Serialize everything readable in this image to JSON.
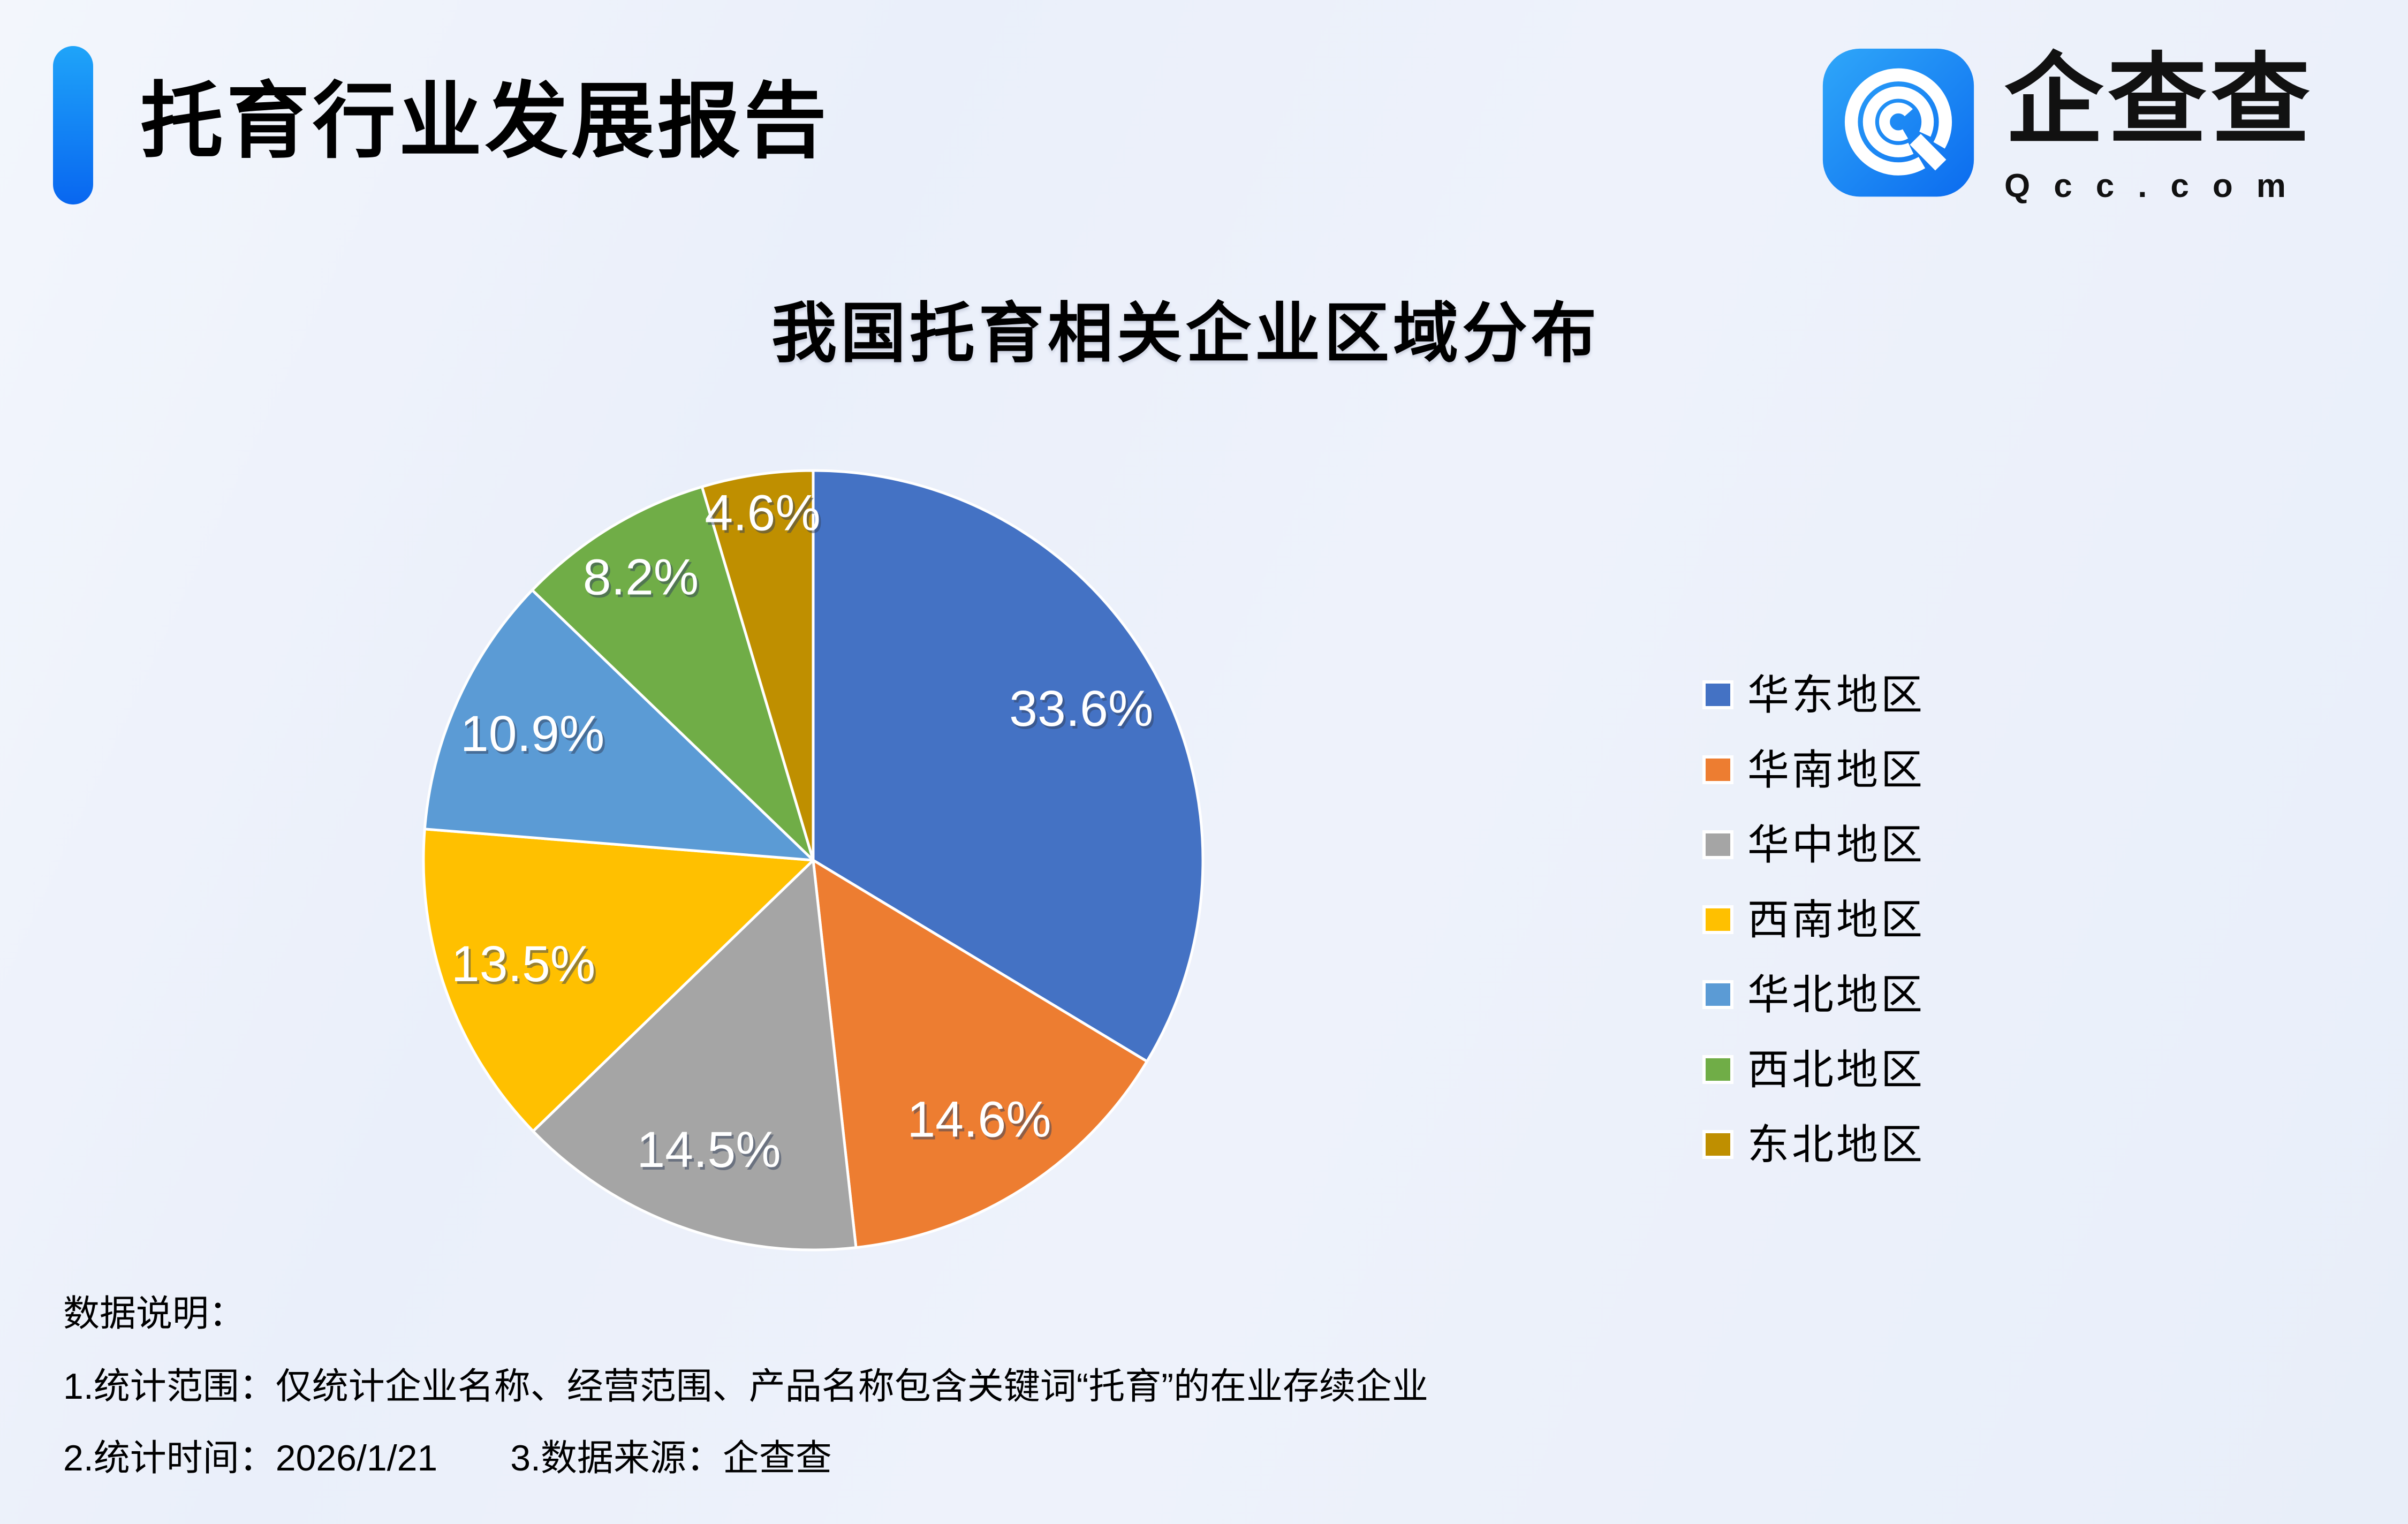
{
  "page": {
    "title": "托育行业发展报告",
    "brand": {
      "name": "企查查",
      "domain": "Qcc.com"
    },
    "notes": {
      "heading": "数据说明：",
      "line1": "1.统计范围：仅统计企业名称、经营范围、产品名称包含关键词“托育”的在业存续企业",
      "line2": "2.统计时间：2026/1/21　　3.数据来源：企查查"
    },
    "accent_color": "#0d7bf4",
    "logo_color": "#1a8cf5"
  },
  "chart_data": {
    "type": "pie",
    "title": "我国托育相关企业区域分布",
    "legend_position": "right",
    "label_format": "percent",
    "slices": [
      {
        "label": "华东地区",
        "value": 33.6,
        "display": "33.6%",
        "color": "#4472C4"
      },
      {
        "label": "华南地区",
        "value": 14.6,
        "display": "14.6%",
        "color": "#ED7D31"
      },
      {
        "label": "华中地区",
        "value": 14.5,
        "display": "14.5%",
        "color": "#A5A5A5"
      },
      {
        "label": "西南地区",
        "value": 13.5,
        "display": "13.5%",
        "color": "#FFC000"
      },
      {
        "label": "华北地区",
        "value": 10.9,
        "display": "10.9%",
        "color": "#5B9BD5"
      },
      {
        "label": "西北地区",
        "value": 8.2,
        "display": "8.2%",
        "color": "#70AD47"
      },
      {
        "label": "东北地区",
        "value": 4.6,
        "display": "4.6%",
        "color": "#BF8F00"
      }
    ]
  }
}
